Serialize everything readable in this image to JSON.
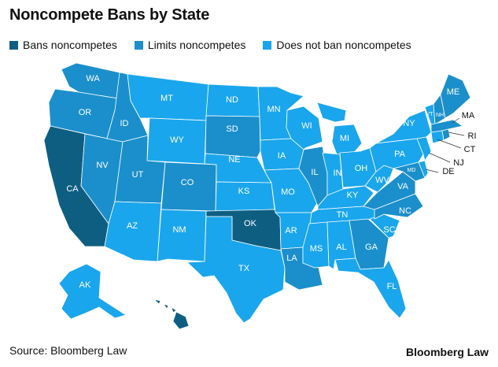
{
  "title": "Noncompete Bans by State",
  "legend": [
    {
      "key": "ban",
      "label": "Bans noncompetes",
      "color": "#0e5e82"
    },
    {
      "key": "limit",
      "label": "Limits noncompetes",
      "color": "#1b8fcb"
    },
    {
      "key": "none",
      "label": "Does not ban noncompetes",
      "color": "#1aa6ec"
    }
  ],
  "source": "Source: Bloomberg Law",
  "brand": "Bloomberg Law",
  "states": [
    {
      "abbr": "WA",
      "status": "limit"
    },
    {
      "abbr": "OR",
      "status": "limit"
    },
    {
      "abbr": "CA",
      "status": "ban"
    },
    {
      "abbr": "NV",
      "status": "limit"
    },
    {
      "abbr": "ID",
      "status": "limit"
    },
    {
      "abbr": "MT",
      "status": "none"
    },
    {
      "abbr": "WY",
      "status": "none"
    },
    {
      "abbr": "UT",
      "status": "limit"
    },
    {
      "abbr": "AZ",
      "status": "none"
    },
    {
      "abbr": "CO",
      "status": "limit"
    },
    {
      "abbr": "NM",
      "status": "none"
    },
    {
      "abbr": "ND",
      "status": "none"
    },
    {
      "abbr": "SD",
      "status": "limit"
    },
    {
      "abbr": "NE",
      "status": "none"
    },
    {
      "abbr": "KS",
      "status": "none"
    },
    {
      "abbr": "OK",
      "status": "ban"
    },
    {
      "abbr": "TX",
      "status": "none"
    },
    {
      "abbr": "MN",
      "status": "none"
    },
    {
      "abbr": "IA",
      "status": "none"
    },
    {
      "abbr": "MO",
      "status": "none"
    },
    {
      "abbr": "AR",
      "status": "none"
    },
    {
      "abbr": "LA",
      "status": "limit"
    },
    {
      "abbr": "WI",
      "status": "none"
    },
    {
      "abbr": "IL",
      "status": "limit"
    },
    {
      "abbr": "MI",
      "status": "none"
    },
    {
      "abbr": "IN",
      "status": "none"
    },
    {
      "abbr": "OH",
      "status": "none"
    },
    {
      "abbr": "KY",
      "status": "none"
    },
    {
      "abbr": "TN",
      "status": "none"
    },
    {
      "abbr": "MS",
      "status": "none"
    },
    {
      "abbr": "AL",
      "status": "none"
    },
    {
      "abbr": "GA",
      "status": "limit"
    },
    {
      "abbr": "FL",
      "status": "none"
    },
    {
      "abbr": "SC",
      "status": "none"
    },
    {
      "abbr": "NC",
      "status": "limit"
    },
    {
      "abbr": "VA",
      "status": "limit"
    },
    {
      "abbr": "WV",
      "status": "none"
    },
    {
      "abbr": "PA",
      "status": "none"
    },
    {
      "abbr": "NY",
      "status": "none"
    },
    {
      "abbr": "VT",
      "status": "none"
    },
    {
      "abbr": "NH",
      "status": "limit"
    },
    {
      "abbr": "ME",
      "status": "limit"
    },
    {
      "abbr": "MA",
      "status": "limit"
    },
    {
      "abbr": "RI",
      "status": "limit"
    },
    {
      "abbr": "CT",
      "status": "none"
    },
    {
      "abbr": "NJ",
      "status": "none"
    },
    {
      "abbr": "DE",
      "status": "none"
    },
    {
      "abbr": "MD",
      "status": "limit"
    },
    {
      "abbr": "AK",
      "status": "none"
    },
    {
      "abbr": "HI",
      "status": "ban"
    }
  ]
}
